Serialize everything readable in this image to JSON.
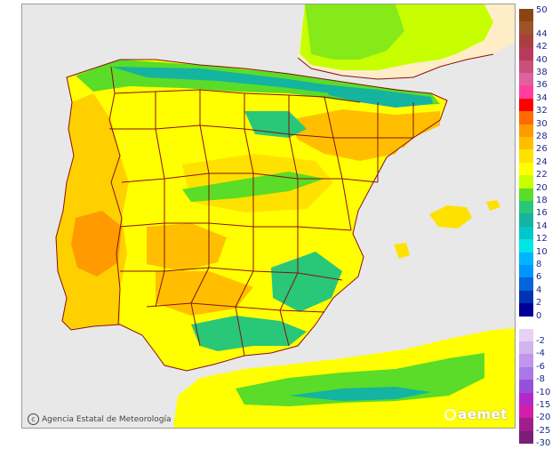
{
  "map": {
    "credit": "Agencia Estatal de Meteorología",
    "brand": "aemet",
    "colors": {
      "sea": "#e8e8e8",
      "france": "#ffedc8",
      "border": "#8a1010"
    }
  },
  "legend": {
    "positive": [
      {
        "label": "50",
        "color": "#8b4513"
      },
      {
        "label": "44",
        "color": "#a0522d"
      },
      {
        "label": "42",
        "color": "#a84040"
      },
      {
        "label": "40",
        "color": "#b83a5a"
      },
      {
        "label": "38",
        "color": "#c8507a"
      },
      {
        "label": "36",
        "color": "#e060a0"
      },
      {
        "label": "34",
        "color": "#ff3fa0"
      },
      {
        "label": "32",
        "color": "#ff0000"
      },
      {
        "label": "30",
        "color": "#ff6a00"
      },
      {
        "label": "28",
        "color": "#ff9a00"
      },
      {
        "label": "26",
        "color": "#ffbf00"
      },
      {
        "label": "24",
        "color": "#ffe100"
      },
      {
        "label": "22",
        "color": "#ffff00"
      },
      {
        "label": "20",
        "color": "#c8ff00"
      },
      {
        "label": "18",
        "color": "#5adc28"
      },
      {
        "label": "16",
        "color": "#28c878"
      },
      {
        "label": "14",
        "color": "#14b4a0"
      },
      {
        "label": "12",
        "color": "#00c8c8"
      },
      {
        "label": "10",
        "color": "#00e6e6"
      },
      {
        "label": "8",
        "color": "#00b4ff"
      },
      {
        "label": "6",
        "color": "#0096ff"
      },
      {
        "label": "4",
        "color": "#0064dc"
      },
      {
        "label": "2",
        "color": "#0032b4"
      },
      {
        "label": "0",
        "color": "#000096"
      }
    ],
    "negative": [
      {
        "label": "-2",
        "color": "#e6d2f5"
      },
      {
        "label": "-4",
        "color": "#d2b4f0"
      },
      {
        "label": "-6",
        "color": "#be96eb"
      },
      {
        "label": "-8",
        "color": "#aa78e6"
      },
      {
        "label": "-10",
        "color": "#9650dc"
      },
      {
        "label": "-15",
        "color": "#b428c8"
      },
      {
        "label": "-20",
        "color": "#d21eaa"
      },
      {
        "label": "-25",
        "color": "#a01e8c"
      },
      {
        "label": "-30",
        "color": "#7a1e78"
      }
    ]
  }
}
